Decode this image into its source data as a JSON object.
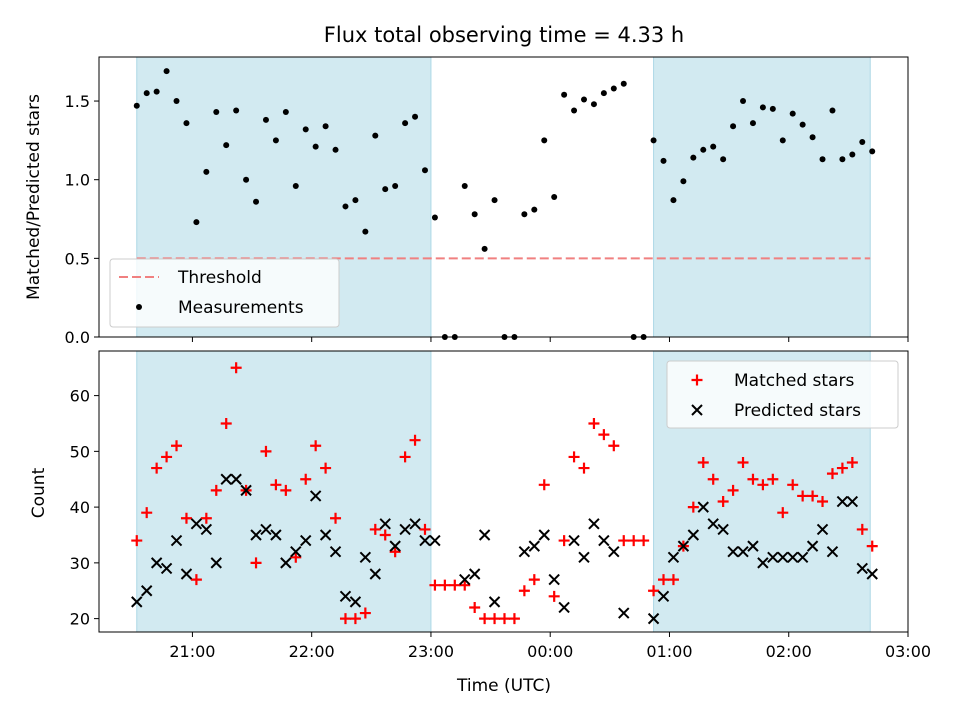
{
  "chart_data": {
    "type": "scatter",
    "title": "Flux total observing time = 4.33 h",
    "xlabel": "Time (UTC)",
    "x_ticks": [
      "21:00",
      "22:00",
      "23:00",
      "00:00",
      "01:00",
      "02:00",
      "03:00"
    ],
    "x_range": [
      "20:13",
      "03:00"
    ],
    "shaded_intervals": [
      {
        "start": "20:32",
        "end": "23:00"
      },
      {
        "start": "00:52",
        "end": "02:41"
      }
    ],
    "colors": {
      "shade": "#add8e6",
      "threshold": "#f08080",
      "matched": "#ff0000",
      "predicted": "#000000",
      "measurements": "#000000"
    },
    "panels": [
      {
        "ylabel": "Matched/Predicted stars",
        "ylim": [
          0,
          1.78
        ],
        "y_ticks": [
          "0.0",
          "0.5",
          "1.0",
          "1.5"
        ],
        "legend_position": "lower-left",
        "threshold": {
          "name": "Threshold",
          "value": 0.5
        },
        "series": [
          {
            "name": "Measurements",
            "points": [
              [
                "20:32",
                1.47
              ],
              [
                "20:37",
                1.55
              ],
              [
                "20:42",
                1.56
              ],
              [
                "20:47",
                1.69
              ],
              [
                "20:52",
                1.5
              ],
              [
                "20:57",
                1.36
              ],
              [
                "21:02",
                0.73
              ],
              [
                "21:07",
                1.05
              ],
              [
                "21:12",
                1.43
              ],
              [
                "21:17",
                1.22
              ],
              [
                "21:22",
                1.44
              ],
              [
                "21:27",
                1.0
              ],
              [
                "21:32",
                0.86
              ],
              [
                "21:37",
                1.38
              ],
              [
                "21:42",
                1.25
              ],
              [
                "21:47",
                1.43
              ],
              [
                "21:52",
                0.96
              ],
              [
                "21:57",
                1.32
              ],
              [
                "22:02",
                1.21
              ],
              [
                "22:07",
                1.34
              ],
              [
                "22:12",
                1.19
              ],
              [
                "22:17",
                0.83
              ],
              [
                "22:22",
                0.87
              ],
              [
                "22:27",
                0.67
              ],
              [
                "22:32",
                1.28
              ],
              [
                "22:37",
                0.94
              ],
              [
                "22:42",
                0.96
              ],
              [
                "22:47",
                1.36
              ],
              [
                "22:52",
                1.4
              ],
              [
                "22:57",
                1.06
              ],
              [
                "23:02",
                0.76
              ],
              [
                "23:07",
                0.0
              ],
              [
                "23:12",
                0.0
              ],
              [
                "23:17",
                0.96
              ],
              [
                "23:22",
                0.78
              ],
              [
                "23:27",
                0.56
              ],
              [
                "23:32",
                0.87
              ],
              [
                "23:37",
                0.0
              ],
              [
                "23:42",
                0.0
              ],
              [
                "23:47",
                0.78
              ],
              [
                "23:52",
                0.81
              ],
              [
                "23:57",
                1.25
              ],
              [
                "00:02",
                0.89
              ],
              [
                "00:07",
                1.54
              ],
              [
                "00:12",
                1.44
              ],
              [
                "00:17",
                1.51
              ],
              [
                "00:22",
                1.48
              ],
              [
                "00:27",
                1.55
              ],
              [
                "00:32",
                1.58
              ],
              [
                "00:37",
                1.61
              ],
              [
                "00:42",
                0.0
              ],
              [
                "00:47",
                0.0
              ],
              [
                "00:52",
                1.25
              ],
              [
                "00:57",
                1.12
              ],
              [
                "01:02",
                0.87
              ],
              [
                "01:07",
                0.99
              ],
              [
                "01:12",
                1.14
              ],
              [
                "01:17",
                1.19
              ],
              [
                "01:22",
                1.21
              ],
              [
                "01:27",
                1.13
              ],
              [
                "01:32",
                1.34
              ],
              [
                "01:37",
                1.5
              ],
              [
                "01:42",
                1.36
              ],
              [
                "01:47",
                1.46
              ],
              [
                "01:52",
                1.45
              ],
              [
                "01:57",
                1.25
              ],
              [
                "02:02",
                1.42
              ],
              [
                "02:07",
                1.35
              ],
              [
                "02:12",
                1.27
              ],
              [
                "02:17",
                1.13
              ],
              [
                "02:22",
                1.44
              ],
              [
                "02:27",
                1.13
              ],
              [
                "02:32",
                1.16
              ],
              [
                "02:37",
                1.24
              ],
              [
                "02:42",
                1.18
              ]
            ]
          }
        ]
      },
      {
        "ylabel": "Count",
        "ylim": [
          17.6,
          68
        ],
        "y_ticks": [
          "20",
          "30",
          "40",
          "50",
          "60"
        ],
        "legend_position": "upper-right",
        "series": [
          {
            "name": "Matched stars",
            "points": [
              [
                "20:32",
                34
              ],
              [
                "20:37",
                39
              ],
              [
                "20:42",
                47
              ],
              [
                "20:47",
                49
              ],
              [
                "20:52",
                51
              ],
              [
                "20:57",
                38
              ],
              [
                "21:02",
                27
              ],
              [
                "21:07",
                38
              ],
              [
                "21:12",
                43
              ],
              [
                "21:17",
                55
              ],
              [
                "21:22",
                65
              ],
              [
                "21:27",
                43
              ],
              [
                "21:32",
                30
              ],
              [
                "21:37",
                50
              ],
              [
                "21:42",
                44
              ],
              [
                "21:47",
                43
              ],
              [
                "21:52",
                31
              ],
              [
                "21:57",
                45
              ],
              [
                "22:02",
                51
              ],
              [
                "22:07",
                47
              ],
              [
                "22:12",
                38
              ],
              [
                "22:17",
                20
              ],
              [
                "22:22",
                20
              ],
              [
                "22:27",
                21
              ],
              [
                "22:32",
                36
              ],
              [
                "22:37",
                35
              ],
              [
                "22:42",
                32
              ],
              [
                "22:47",
                49
              ],
              [
                "22:52",
                52
              ],
              [
                "22:57",
                36
              ],
              [
                "23:02",
                26
              ],
              [
                "23:07",
                26
              ],
              [
                "23:12",
                26
              ],
              [
                "23:17",
                26
              ],
              [
                "23:22",
                22
              ],
              [
                "23:27",
                20
              ],
              [
                "23:32",
                20
              ],
              [
                "23:37",
                20
              ],
              [
                "23:42",
                20
              ],
              [
                "23:47",
                25
              ],
              [
                "23:52",
                27
              ],
              [
                "23:57",
                44
              ],
              [
                "00:02",
                24
              ],
              [
                "00:07",
                34
              ],
              [
                "00:12",
                49
              ],
              [
                "00:17",
                47
              ],
              [
                "00:22",
                55
              ],
              [
                "00:27",
                53
              ],
              [
                "00:32",
                51
              ],
              [
                "00:37",
                34
              ],
              [
                "00:42",
                34
              ],
              [
                "00:47",
                34
              ],
              [
                "00:52",
                25
              ],
              [
                "00:57",
                27
              ],
              [
                "01:02",
                27
              ],
              [
                "01:07",
                33
              ],
              [
                "01:12",
                40
              ],
              [
                "01:17",
                48
              ],
              [
                "01:22",
                45
              ],
              [
                "01:27",
                41
              ],
              [
                "01:32",
                43
              ],
              [
                "01:37",
                48
              ],
              [
                "01:42",
                45
              ],
              [
                "01:47",
                44
              ],
              [
                "01:52",
                45
              ],
              [
                "01:57",
                39
              ],
              [
                "02:02",
                44
              ],
              [
                "02:07",
                42
              ],
              [
                "02:12",
                42
              ],
              [
                "02:17",
                41
              ],
              [
                "02:22",
                46
              ],
              [
                "02:27",
                47
              ],
              [
                "02:32",
                48
              ],
              [
                "02:37",
                36
              ],
              [
                "02:42",
                33
              ]
            ]
          },
          {
            "name": "Predicted stars",
            "points": [
              [
                "20:32",
                23
              ],
              [
                "20:37",
                25
              ],
              [
                "20:42",
                30
              ],
              [
                "20:47",
                29
              ],
              [
                "20:52",
                34
              ],
              [
                "20:57",
                28
              ],
              [
                "21:02",
                37
              ],
              [
                "21:07",
                36
              ],
              [
                "21:12",
                30
              ],
              [
                "21:17",
                45
              ],
              [
                "21:22",
                45
              ],
              [
                "21:27",
                43
              ],
              [
                "21:32",
                35
              ],
              [
                "21:37",
                36
              ],
              [
                "21:42",
                35
              ],
              [
                "21:47",
                30
              ],
              [
                "21:52",
                32
              ],
              [
                "21:57",
                34
              ],
              [
                "22:02",
                42
              ],
              [
                "22:07",
                35
              ],
              [
                "22:12",
                32
              ],
              [
                "22:17",
                24
              ],
              [
                "22:22",
                23
              ],
              [
                "22:27",
                31
              ],
              [
                "22:32",
                28
              ],
              [
                "22:37",
                37
              ],
              [
                "22:42",
                33
              ],
              [
                "22:47",
                36
              ],
              [
                "22:52",
                37
              ],
              [
                "22:57",
                34
              ],
              [
                "23:02",
                34
              ],
              [
                "23:17",
                27
              ],
              [
                "23:22",
                28
              ],
              [
                "23:27",
                35
              ],
              [
                "23:32",
                23
              ],
              [
                "23:47",
                32
              ],
              [
                "23:52",
                33
              ],
              [
                "23:57",
                35
              ],
              [
                "00:02",
                27
              ],
              [
                "00:07",
                22
              ],
              [
                "00:12",
                34
              ],
              [
                "00:17",
                31
              ],
              [
                "00:22",
                37
              ],
              [
                "00:27",
                34
              ],
              [
                "00:32",
                32
              ],
              [
                "00:37",
                21
              ],
              [
                "00:52",
                20
              ],
              [
                "00:57",
                24
              ],
              [
                "01:02",
                31
              ],
              [
                "01:07",
                33
              ],
              [
                "01:12",
                35
              ],
              [
                "01:17",
                40
              ],
              [
                "01:22",
                37
              ],
              [
                "01:27",
                36
              ],
              [
                "01:32",
                32
              ],
              [
                "01:37",
                32
              ],
              [
                "01:42",
                33
              ],
              [
                "01:47",
                30
              ],
              [
                "01:52",
                31
              ],
              [
                "01:57",
                31
              ],
              [
                "02:02",
                31
              ],
              [
                "02:07",
                31
              ],
              [
                "02:12",
                33
              ],
              [
                "02:17",
                36
              ],
              [
                "02:22",
                32
              ],
              [
                "02:27",
                41
              ],
              [
                "02:32",
                41
              ],
              [
                "02:37",
                29
              ],
              [
                "02:42",
                28
              ]
            ]
          }
        ]
      }
    ]
  }
}
